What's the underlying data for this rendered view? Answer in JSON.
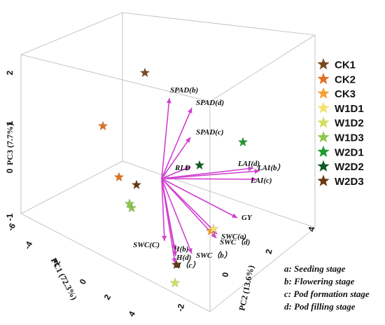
{
  "chart_data": {
    "type": "scatter",
    "subtype": "3d-biplot",
    "axes": {
      "x": {
        "label": "PC1 (72.3%)",
        "ticks": [
          "-6",
          "-4",
          "-2",
          "0",
          "2",
          "4"
        ]
      },
      "y": {
        "label": "PC2 (13.6%)",
        "ticks": [
          "-2",
          "0",
          "2",
          "4"
        ]
      },
      "z": {
        "label": "PC3 (7.7%)",
        "ticks": [
          "-1",
          "0",
          "1",
          "2"
        ]
      }
    },
    "series": [
      {
        "name": "CK1",
        "color": "#7a4a1e",
        "marker": "star"
      },
      {
        "name": "CK2",
        "color": "#e07020",
        "marker": "star"
      },
      {
        "name": "CK3",
        "color": "#f5a030",
        "marker": "star"
      },
      {
        "name": "W1D1",
        "color": "#f5e070",
        "marker": "star"
      },
      {
        "name": "W1D2",
        "color": "#d2e060",
        "marker": "star"
      },
      {
        "name": "W1D3",
        "color": "#8cc84c",
        "marker": "star"
      },
      {
        "name": "W2D1",
        "color": "#1e9a30",
        "marker": "star"
      },
      {
        "name": "W2D2",
        "color": "#0e5a22",
        "marker": "star"
      },
      {
        "name": "W2D3",
        "color": "#6a3810",
        "marker": "star"
      }
    ],
    "loading_vectors": [
      "SPAD(b)",
      "SPAD(d)",
      "SPAD(c)",
      "RLD",
      "LAI(d)",
      "LAI(b）",
      "LAI(c)",
      "GY",
      "SWC(a)",
      "SWC（d)",
      "SWC（b）",
      "SWC(C)",
      "H(b)",
      "H(d)",
      "H（c）"
    ],
    "vector_color": "#d040d0",
    "legend_position": "right",
    "grid": false
  },
  "notes": [
    "a: Seeding stage",
    "b: Flowering stage",
    "c: Pod formation stage",
    "d: Pod filling stage"
  ]
}
